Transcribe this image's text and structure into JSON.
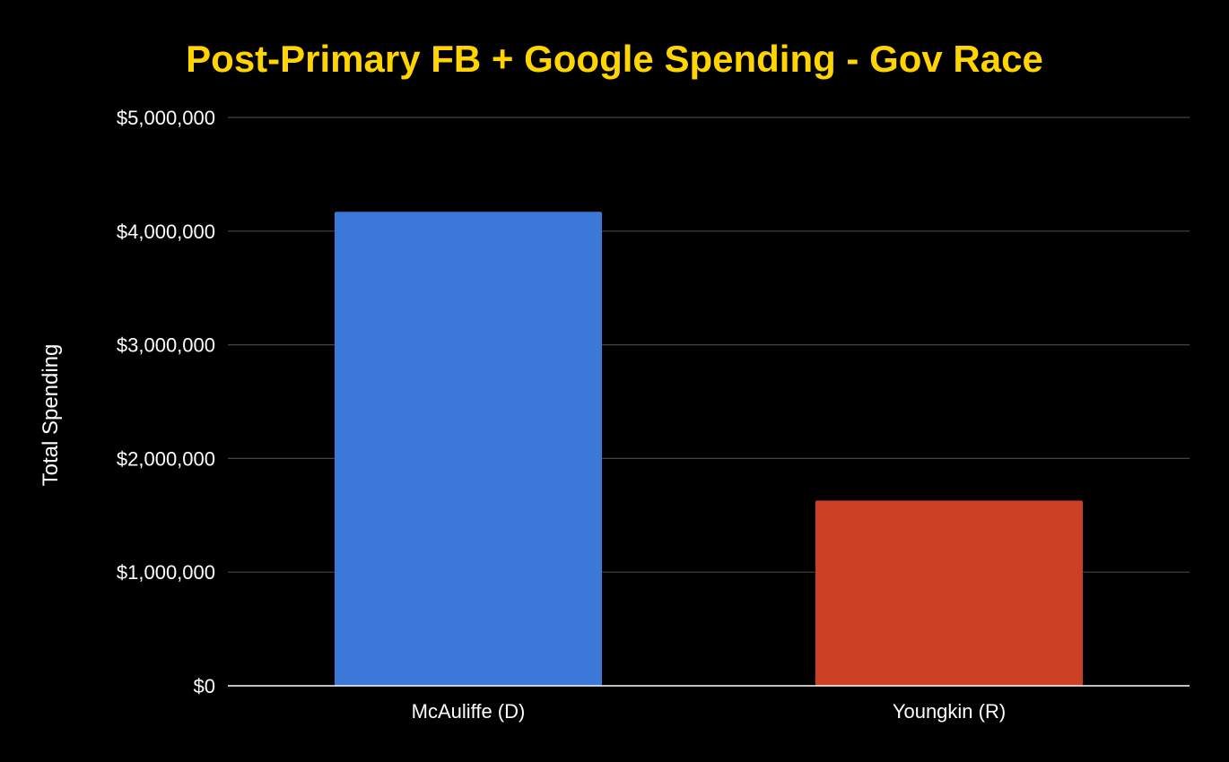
{
  "chart_data": {
    "type": "bar",
    "title": "Post-Primary FB + Google Spending - Gov Race",
    "xlabel": "",
    "ylabel": "Total Spending",
    "categories": [
      "McAuliffe (D)",
      "Youngkin (R)"
    ],
    "values": [
      4170000,
      1630000
    ],
    "bar_colors": [
      "#3c78d8",
      "#cc4125"
    ],
    "ylim": [
      0,
      5000000
    ],
    "y_ticks": [
      0,
      1000000,
      2000000,
      3000000,
      4000000,
      5000000
    ],
    "y_tick_labels": [
      "$0",
      "$1,000,000",
      "$2,000,000",
      "$3,000,000",
      "$4,000,000",
      "$5,000,000"
    ],
    "grid": true,
    "legend": "none"
  },
  "colors": {
    "background": "#000000",
    "title": "#ffd400",
    "text": "#ffffff",
    "gridline": "#444444",
    "axis_line": "#ffffff"
  }
}
